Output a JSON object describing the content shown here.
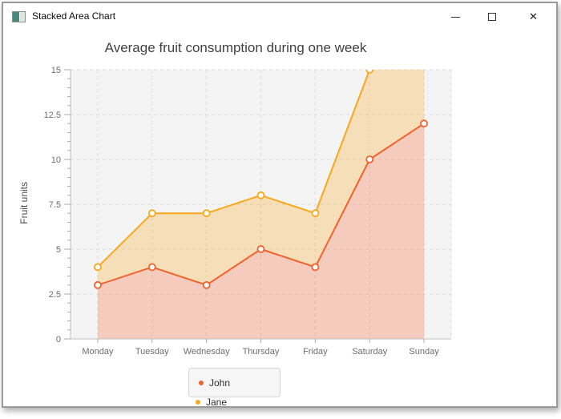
{
  "window": {
    "title": "Stacked Area Chart",
    "controls": {
      "minimize_icon": "minimize",
      "maximize_icon": "maximize",
      "close_glyph": "✕"
    }
  },
  "chart_data": {
    "type": "area",
    "stacked": true,
    "title": "Average fruit consumption during one week",
    "xlabel": "",
    "ylabel": "Fruit units",
    "categories": [
      "Monday",
      "Tuesday",
      "Wednesday",
      "Thursday",
      "Friday",
      "Saturday",
      "Sunday"
    ],
    "series": [
      {
        "name": "John",
        "values": [
          3,
          4,
          3,
          5,
          4,
          10,
          12
        ],
        "line_color": "#f3622d",
        "fill_color": "rgba(243,98,45,0.28)"
      },
      {
        "name": "Jane",
        "values": [
          1,
          3,
          4,
          3,
          3,
          5,
          4
        ],
        "line_color": "#fba71b",
        "fill_color": "rgba(251,167,27,0.28)"
      }
    ],
    "stacked_totals": [
      4,
      7,
      7,
      8,
      7,
      15,
      16
    ],
    "ylim": [
      0,
      15
    ],
    "y_major_ticks": [
      0,
      2.5,
      5,
      7.5,
      10,
      12.5,
      15
    ],
    "y_tick_labels": [
      "0",
      "2.5",
      "5",
      "7.5",
      "10",
      "12.5",
      "15"
    ],
    "y_minor_tick_step": 0.5,
    "grid": true,
    "legend_position": "bottom",
    "marker": "circle"
  },
  "legend": {
    "items": [
      {
        "label": "John",
        "color": "#f3622d"
      },
      {
        "label": "Jane",
        "color": "#fba71b"
      }
    ]
  },
  "colors": {
    "plot_background": "#f4f4f4",
    "gridline": "#dcdcdc",
    "axis_line": "#bcbcbc",
    "tick_mark": "#ababab",
    "tick_text": "#6e6e6e",
    "marker_fill": "#fefefe"
  }
}
